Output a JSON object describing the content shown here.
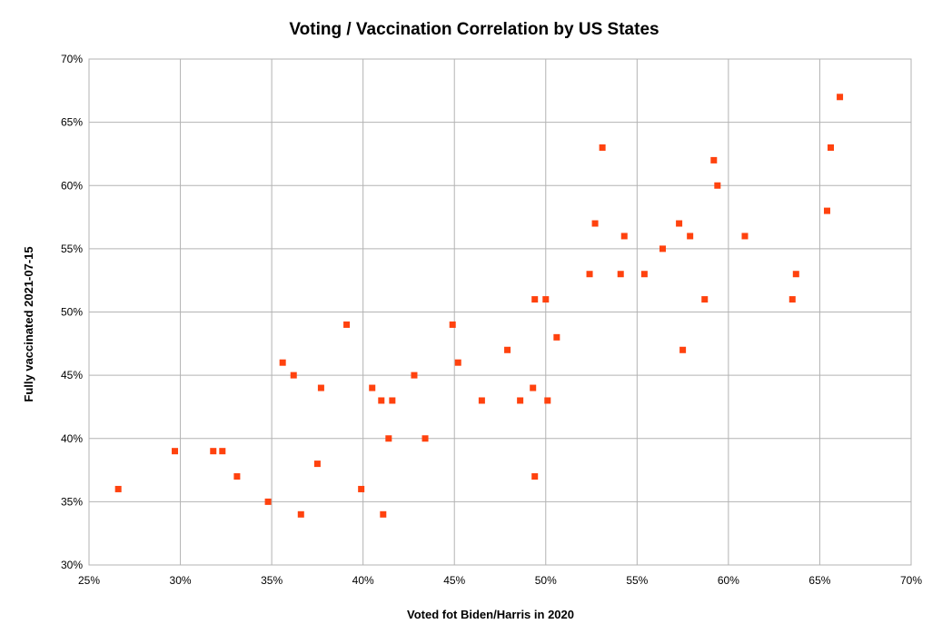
{
  "chart_data": {
    "type": "scatter",
    "title": "Voting / Vaccination Correlation by US States",
    "xlabel": "Voted fot Biden/Harris in 2020",
    "ylabel": "Fully vaccinated 2021-07-15",
    "xlim": [
      0.25,
      0.7
    ],
    "ylim": [
      0.3,
      0.7
    ],
    "x_ticks": [
      0.25,
      0.3,
      0.35,
      0.4,
      0.45,
      0.5,
      0.55,
      0.6,
      0.65,
      0.7
    ],
    "y_ticks": [
      0.3,
      0.35,
      0.4,
      0.45,
      0.5,
      0.55,
      0.6,
      0.65,
      0.7
    ],
    "x_tick_labels": [
      "25%",
      "30%",
      "35%",
      "40%",
      "45%",
      "50%",
      "55%",
      "60%",
      "65%",
      "70%"
    ],
    "y_tick_labels": [
      "30%",
      "35%",
      "40%",
      "45%",
      "50%",
      "55%",
      "60%",
      "65%",
      "70%"
    ],
    "grid": true,
    "legend": "none",
    "marker_color": "#ff420e",
    "points": [
      {
        "x": 0.266,
        "y": 0.36
      },
      {
        "x": 0.297,
        "y": 0.39
      },
      {
        "x": 0.318,
        "y": 0.39
      },
      {
        "x": 0.323,
        "y": 0.39
      },
      {
        "x": 0.331,
        "y": 0.37
      },
      {
        "x": 0.348,
        "y": 0.35
      },
      {
        "x": 0.356,
        "y": 0.46
      },
      {
        "x": 0.362,
        "y": 0.45
      },
      {
        "x": 0.366,
        "y": 0.34
      },
      {
        "x": 0.375,
        "y": 0.38
      },
      {
        "x": 0.377,
        "y": 0.44
      },
      {
        "x": 0.391,
        "y": 0.49
      },
      {
        "x": 0.399,
        "y": 0.36
      },
      {
        "x": 0.405,
        "y": 0.44
      },
      {
        "x": 0.41,
        "y": 0.43
      },
      {
        "x": 0.411,
        "y": 0.34
      },
      {
        "x": 0.414,
        "y": 0.4
      },
      {
        "x": 0.416,
        "y": 0.43
      },
      {
        "x": 0.428,
        "y": 0.45
      },
      {
        "x": 0.434,
        "y": 0.4
      },
      {
        "x": 0.449,
        "y": 0.49
      },
      {
        "x": 0.452,
        "y": 0.46
      },
      {
        "x": 0.465,
        "y": 0.43
      },
      {
        "x": 0.479,
        "y": 0.47
      },
      {
        "x": 0.486,
        "y": 0.43
      },
      {
        "x": 0.493,
        "y": 0.44
      },
      {
        "x": 0.494,
        "y": 0.51
      },
      {
        "x": 0.494,
        "y": 0.37
      },
      {
        "x": 0.5,
        "y": 0.51
      },
      {
        "x": 0.501,
        "y": 0.43
      },
      {
        "x": 0.506,
        "y": 0.48
      },
      {
        "x": 0.524,
        "y": 0.53
      },
      {
        "x": 0.527,
        "y": 0.57
      },
      {
        "x": 0.531,
        "y": 0.63
      },
      {
        "x": 0.541,
        "y": 0.53
      },
      {
        "x": 0.543,
        "y": 0.56
      },
      {
        "x": 0.554,
        "y": 0.53
      },
      {
        "x": 0.564,
        "y": 0.55
      },
      {
        "x": 0.573,
        "y": 0.57
      },
      {
        "x": 0.575,
        "y": 0.47
      },
      {
        "x": 0.579,
        "y": 0.56
      },
      {
        "x": 0.587,
        "y": 0.51
      },
      {
        "x": 0.592,
        "y": 0.62
      },
      {
        "x": 0.594,
        "y": 0.6
      },
      {
        "x": 0.609,
        "y": 0.56
      },
      {
        "x": 0.635,
        "y": 0.51
      },
      {
        "x": 0.637,
        "y": 0.53
      },
      {
        "x": 0.654,
        "y": 0.58
      },
      {
        "x": 0.656,
        "y": 0.63
      },
      {
        "x": 0.661,
        "y": 0.67
      }
    ]
  }
}
